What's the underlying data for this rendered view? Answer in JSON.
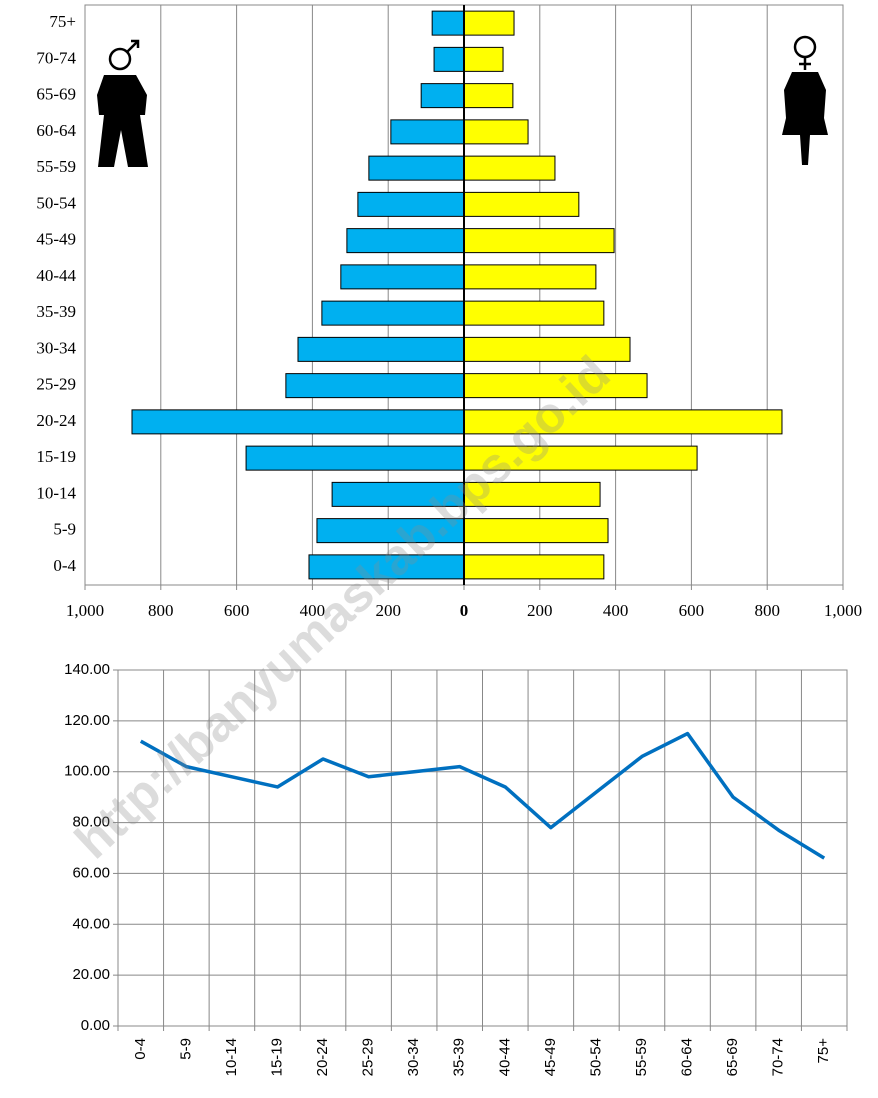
{
  "chart_data": [
    {
      "type": "bar",
      "orientation": "horizontal",
      "categories": [
        "0-4",
        "5-9",
        "10-14",
        "15-19",
        "20-24",
        "25-29",
        "30-34",
        "35-39",
        "40-44",
        "45-49",
        "50-54",
        "55-59",
        "60-64",
        "65-69",
        "70-74",
        "75+"
      ],
      "series": [
        {
          "color": "#00b0f0",
          "values": [
            -409,
            -388,
            -348,
            -575,
            -876,
            -470,
            -438,
            -375,
            -325,
            -309,
            -280,
            -251,
            -193,
            -113,
            -79,
            -84
          ]
        },
        {
          "color": "#ffff00",
          "values": [
            369,
            380,
            359,
            615,
            839,
            483,
            438,
            369,
            348,
            396,
            303,
            240,
            169,
            129,
            103,
            132
          ]
        }
      ],
      "xlim": [
        -1000,
        1000
      ],
      "xticks": [
        {
          "value": -1000,
          "label": "1,000"
        },
        {
          "value": -800,
          "label": "800"
        },
        {
          "value": -600,
          "label": "600"
        },
        {
          "value": -400,
          "label": "400"
        },
        {
          "value": -200,
          "label": "200"
        },
        0,
        200,
        400,
        600,
        800,
        {
          "value": 1000,
          "label": "1,000"
        }
      ],
      "grid": true
    },
    {
      "type": "line",
      "categories": [
        "0-4",
        "5-9",
        "10-14",
        "15-19",
        "20-24",
        "25-29",
        "30-34",
        "35-39",
        "40-44",
        "45-49",
        "50-54",
        "55-59",
        "60-64",
        "65-69",
        "70-74",
        "75+"
      ],
      "series": [
        {
          "color": "#0070c0",
          "values": [
            112,
            102,
            98,
            94,
            105,
            98,
            100,
            102,
            94,
            78,
            92,
            106,
            115,
            90,
            77,
            66
          ]
        }
      ],
      "ylim": [
        0,
        140
      ],
      "yticks": [
        {
          "value": 0,
          "label": "0.00"
        },
        {
          "value": 20,
          "label": "20.00"
        },
        {
          "value": 40,
          "label": "40.00"
        },
        {
          "value": 60,
          "label": "60.00"
        },
        {
          "value": 80,
          "label": "80.00"
        },
        {
          "value": 100,
          "label": "100.00"
        },
        {
          "value": 120,
          "label": "120.00"
        },
        {
          "value": 140,
          "label": "140.00"
        }
      ],
      "grid": true
    }
  ],
  "watermark": "http://banyumaskab.bps.go.id"
}
